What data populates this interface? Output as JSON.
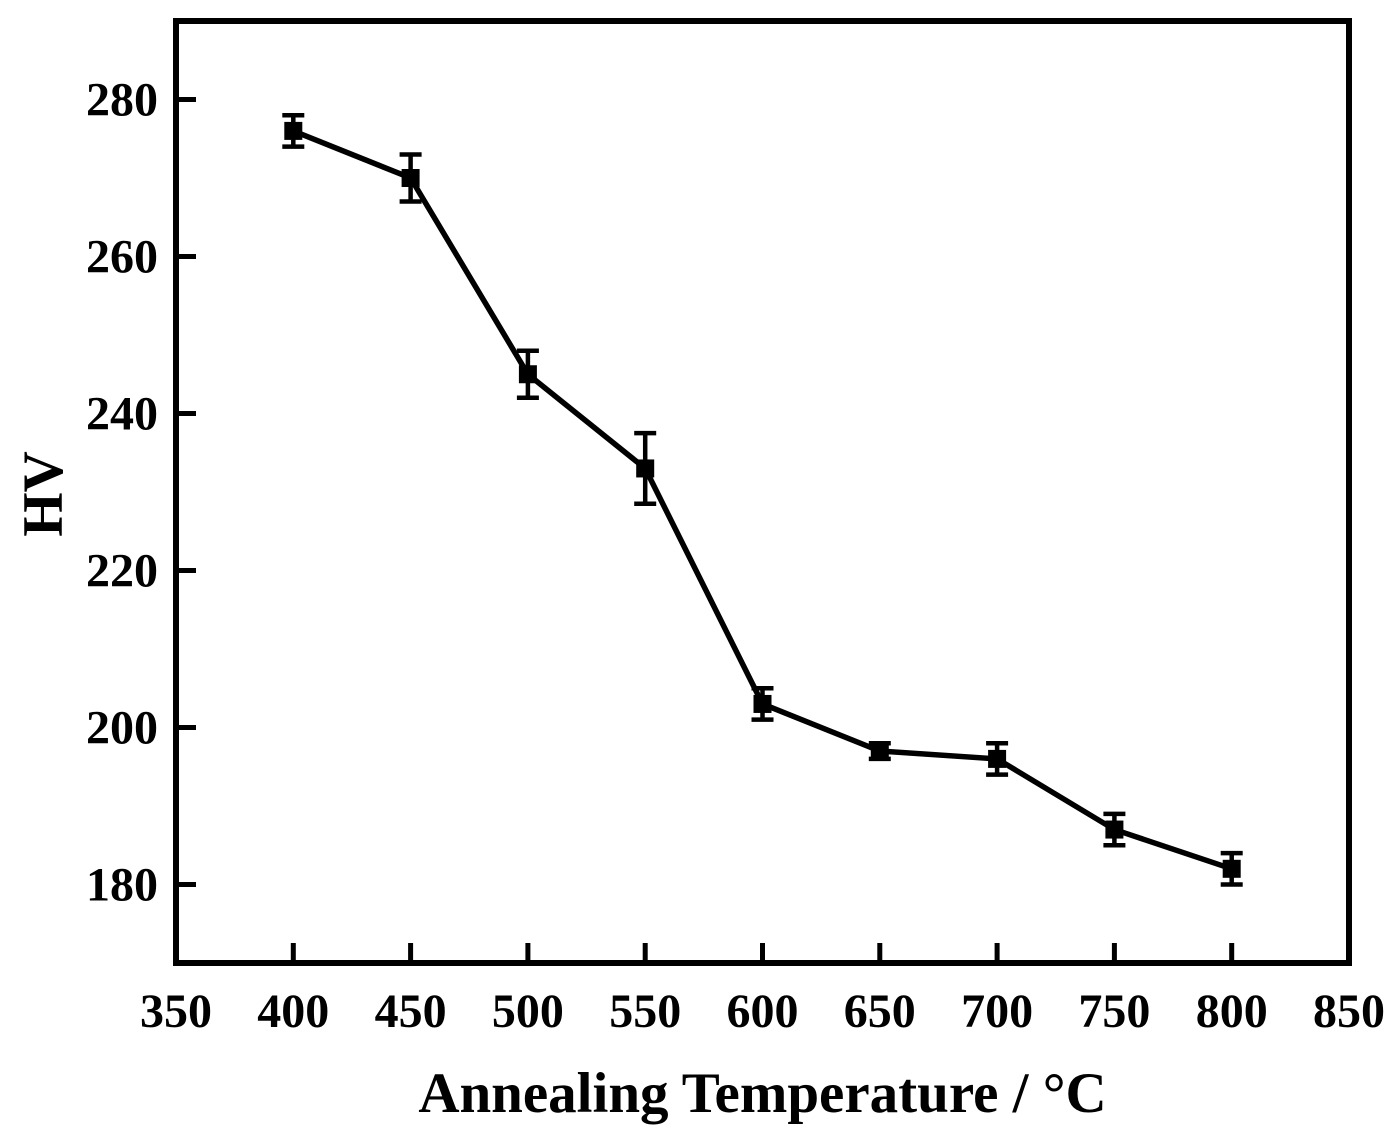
{
  "chart_data": {
    "type": "line",
    "title": "",
    "xlabel": "Annealing Temperature / °C",
    "ylabel": "HV",
    "x": [
      400,
      450,
      500,
      550,
      600,
      650,
      700,
      750,
      800
    ],
    "y": [
      276,
      270,
      245,
      233,
      203,
      197,
      196,
      187,
      182
    ],
    "yerr": [
      2,
      3,
      3,
      4.5,
      2,
      1,
      2,
      2,
      2
    ],
    "x_tick_labels": [
      "350",
      "400",
      "450",
      "500",
      "550",
      "600",
      "650",
      "700",
      "750",
      "800",
      "850"
    ],
    "x_tick_label_values": [
      350,
      400,
      450,
      500,
      550,
      600,
      650,
      700,
      750,
      800,
      850
    ],
    "x_tick_mark_values": [
      400,
      450,
      500,
      550,
      600,
      650,
      700,
      750,
      800
    ],
    "y_tick_labels": [
      "180",
      "200",
      "220",
      "240",
      "260",
      "280"
    ],
    "y_tick_values": [
      180,
      200,
      220,
      240,
      260,
      280
    ],
    "xlim": [
      350,
      850
    ],
    "ylim": [
      170,
      290
    ],
    "grid": false,
    "legend": null,
    "marker": "filled-square",
    "line_color": "#000000",
    "marker_color": "#000000",
    "background": "#ffffff"
  }
}
